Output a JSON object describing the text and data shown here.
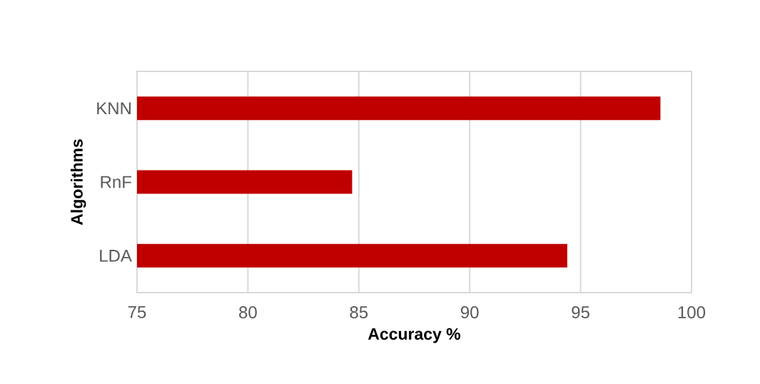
{
  "chart_data": {
    "type": "bar",
    "orientation": "horizontal",
    "xlabel": "Accuracy %",
    "ylabel": "Algorithms",
    "categories": [
      "KNN",
      "RnF",
      "LDA"
    ],
    "values": [
      98.6,
      84.7,
      94.4
    ],
    "color": "#c00000",
    "xlim": [
      75,
      100
    ],
    "xticks": [
      75,
      80,
      85,
      90,
      95,
      100
    ],
    "grid": "x"
  }
}
